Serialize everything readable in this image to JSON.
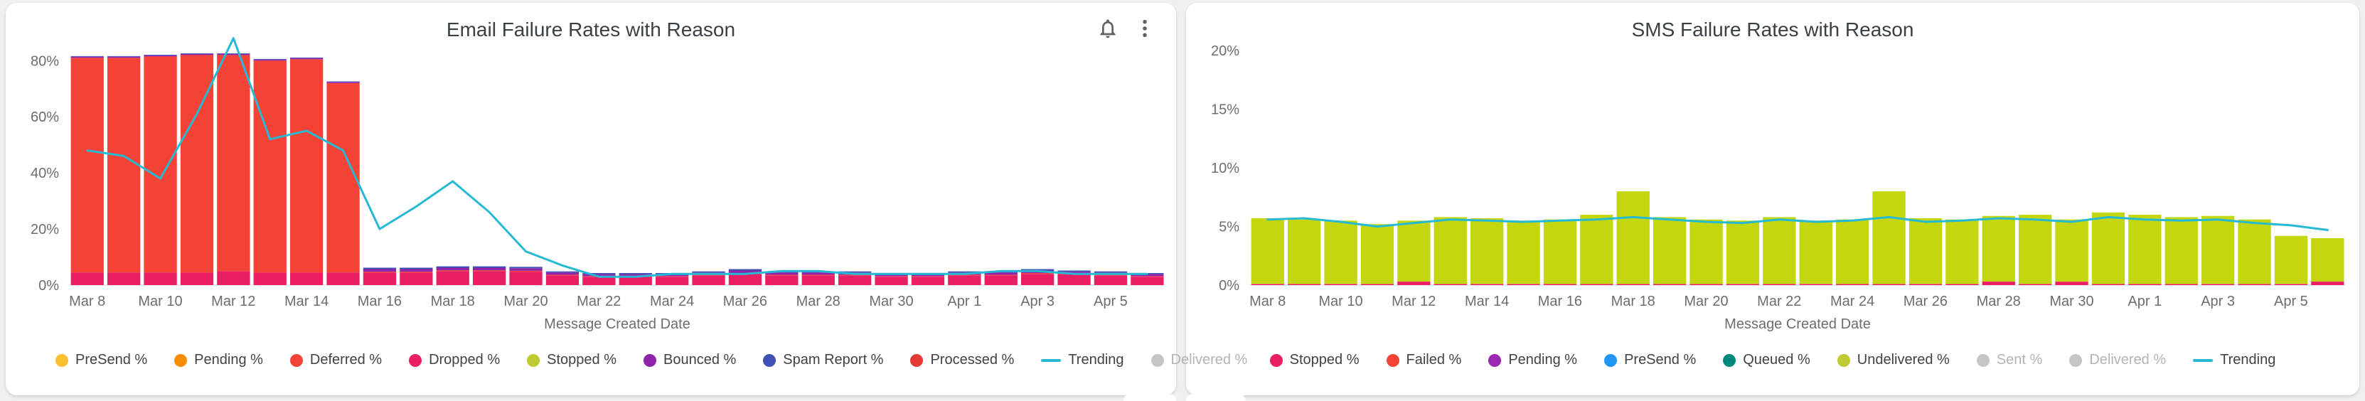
{
  "page": {
    "background": "#f0f0f0",
    "card_background": "#ffffff"
  },
  "colors": {
    "trending": "#26b9d3",
    "axis_text": "#6d6d6d",
    "title_text": "#3b4045",
    "disabled": "#c5c5c5"
  },
  "cards": [
    {
      "title": "Email Failure Rates with Reason",
      "icons": [
        "notifications-bell",
        "kebab-menu"
      ],
      "legend": [
        {
          "label": "PreSend %",
          "color": "#fbc02d"
        },
        {
          "label": "Pending %",
          "color": "#fb8c00"
        },
        {
          "label": "Deferred %",
          "color": "#f44336"
        },
        {
          "label": "Dropped %",
          "color": "#e91e63"
        },
        {
          "label": "Stopped %",
          "color": "#c0ca33"
        },
        {
          "label": "Bounced %",
          "color": "#8e24aa"
        },
        {
          "label": "Spam Report %",
          "color": "#3f51b5"
        },
        {
          "label": "Processed %",
          "color": "#e53935"
        },
        {
          "label": "Trending",
          "color": "#26b9d3",
          "type": "line"
        },
        {
          "label": "Delivered %",
          "color": "#c5c5c5",
          "disabled": true,
          "align": "right"
        }
      ]
    },
    {
      "title": "SMS Failure Rates with Reason",
      "icons": [],
      "legend": [
        {
          "label": "Stopped %",
          "color": "#e91e63"
        },
        {
          "label": "Failed %",
          "color": "#f44336"
        },
        {
          "label": "Pending %",
          "color": "#9c27b0"
        },
        {
          "label": "PreSend %",
          "color": "#2196f3"
        },
        {
          "label": "Queued %",
          "color": "#00897b"
        },
        {
          "label": "Undelivered %",
          "color": "#c0ca33"
        },
        {
          "label": "Sent %",
          "color": "#c5c5c5",
          "disabled": true
        },
        {
          "label": "Delivered %",
          "color": "#c5c5c5",
          "disabled": true
        },
        {
          "label": "Trending",
          "color": "#26b9d3",
          "type": "line"
        }
      ]
    }
  ],
  "chart_data": [
    {
      "type": "bar",
      "stacked": true,
      "title": "Email Failure Rates with Reason",
      "xlabel": "Message Created Date",
      "ylabel": "",
      "ylim": [
        0,
        94
      ],
      "yticks": [
        0,
        20,
        40,
        60,
        80
      ],
      "ytick_suffix": "%",
      "xtick_every": 2,
      "legend_position": "bottom",
      "grid": false,
      "categories": [
        "Mar 8",
        "Mar 9",
        "Mar 10",
        "Mar 11",
        "Mar 12",
        "Mar 13",
        "Mar 14",
        "Mar 15",
        "Mar 16",
        "Mar 17",
        "Mar 18",
        "Mar 19",
        "Mar 20",
        "Mar 21",
        "Mar 22",
        "Mar 23",
        "Mar 24",
        "Mar 25",
        "Mar 26",
        "Mar 27",
        "Mar 28",
        "Mar 29",
        "Mar 30",
        "Mar 31",
        "Apr 1",
        "Apr 2",
        "Apr 3",
        "Apr 4",
        "Apr 5",
        "Apr 6"
      ],
      "series": [
        {
          "name": "Dropped %",
          "color": "#e91e63",
          "values": [
            4.5,
            4.5,
            4.5,
            4.5,
            5,
            4.5,
            4.5,
            4.5,
            4.5,
            4.5,
            5,
            5,
            4.8,
            3.5,
            3,
            3,
            3,
            3.5,
            4,
            3.5,
            3.5,
            3.5,
            3,
            3,
            3.5,
            3.5,
            4,
            3.8,
            3.5,
            3
          ]
        },
        {
          "name": "Deferred %",
          "color": "#f44336",
          "values": [
            76.5,
            76.5,
            77,
            77.5,
            77,
            75.5,
            76,
            67.5,
            0.3,
            0.3,
            0.3,
            0.3,
            0.3,
            0.2,
            0.2,
            0.2,
            0.2,
            0.2,
            0.3,
            0.2,
            0.2,
            0.2,
            0.2,
            0.2,
            0.2,
            0.2,
            0.3,
            0.2,
            0.2,
            0.2
          ]
        },
        {
          "name": "Bounced %",
          "color": "#8e24aa",
          "values": [
            0.4,
            0.4,
            0.4,
            0.4,
            0.4,
            0.4,
            0.4,
            0.4,
            0.9,
            0.9,
            0.9,
            0.9,
            0.9,
            0.8,
            0.7,
            0.7,
            0.7,
            0.8,
            0.9,
            0.8,
            0.8,
            0.8,
            0.7,
            0.7,
            0.8,
            0.8,
            0.9,
            0.8,
            0.8,
            0.7
          ]
        },
        {
          "name": "Spam Report %",
          "color": "#3f51b5",
          "values": [
            0.2,
            0.2,
            0.2,
            0.2,
            0.2,
            0.2,
            0.2,
            0.2,
            0.5,
            0.5,
            0.5,
            0.5,
            0.5,
            0.4,
            0.4,
            0.4,
            0.4,
            0.4,
            0.5,
            0.4,
            0.4,
            0.4,
            0.4,
            0.4,
            0.4,
            0.4,
            0.5,
            0.4,
            0.4,
            0.4
          ]
        }
      ],
      "line": {
        "name": "Trending",
        "color": "#26b9d3",
        "values": [
          48,
          46,
          38,
          61,
          88,
          52,
          55,
          48,
          20,
          28,
          37,
          26,
          12,
          7,
          3,
          3,
          4,
          4,
          4,
          5,
          5,
          4,
          4,
          4,
          4,
          5,
          5,
          4,
          4,
          4
        ]
      }
    },
    {
      "type": "bar",
      "stacked": true,
      "title": "SMS Failure Rates with Reason",
      "xlabel": "Message Created Date",
      "ylabel": "",
      "ylim": [
        0,
        22.5
      ],
      "yticks": [
        0,
        5,
        10,
        15,
        20
      ],
      "ytick_suffix": "%",
      "xtick_every": 2,
      "legend_position": "bottom",
      "grid": false,
      "categories": [
        "Mar 8",
        "Mar 9",
        "Mar 10",
        "Mar 11",
        "Mar 12",
        "Mar 13",
        "Mar 14",
        "Mar 15",
        "Mar 16",
        "Mar 17",
        "Mar 18",
        "Mar 19",
        "Mar 20",
        "Mar 21",
        "Mar 22",
        "Mar 23",
        "Mar 24",
        "Mar 25",
        "Mar 26",
        "Mar 27",
        "Mar 28",
        "Mar 29",
        "Mar 30",
        "Mar 31",
        "Apr 1",
        "Apr 2",
        "Apr 3",
        "Apr 4",
        "Apr 5",
        "Apr 6"
      ],
      "series": [
        {
          "name": "Stopped %",
          "color": "#e91e63",
          "values": [
            0.1,
            0.1,
            0.1,
            0.1,
            0.3,
            0.1,
            0.1,
            0.1,
            0.1,
            0.1,
            0.1,
            0.1,
            0.1,
            0.1,
            0.1,
            0.1,
            0.1,
            0.1,
            0.1,
            0.1,
            0.3,
            0.1,
            0.3,
            0.1,
            0.1,
            0.1,
            0.1,
            0.1,
            0.1,
            0.3
          ]
        },
        {
          "name": "Undelivered %",
          "color": "#c3d60e",
          "values": [
            5.6,
            5.5,
            5.4,
            5.1,
            5.2,
            5.7,
            5.6,
            5.4,
            5.5,
            5.9,
            7.9,
            5.7,
            5.5,
            5.4,
            5.7,
            5.4,
            5.5,
            7.9,
            5.6,
            5.5,
            5.6,
            5.9,
            5.3,
            6.1,
            5.9,
            5.7,
            5.8,
            5.5,
            4.1,
            3.7
          ]
        }
      ],
      "line": {
        "name": "Trending",
        "color": "#26b9d3",
        "values": [
          5.6,
          5.7,
          5.4,
          5.0,
          5.3,
          5.6,
          5.5,
          5.4,
          5.5,
          5.6,
          5.8,
          5.6,
          5.4,
          5.3,
          5.6,
          5.4,
          5.5,
          5.8,
          5.4,
          5.5,
          5.7,
          5.6,
          5.4,
          5.8,
          5.6,
          5.5,
          5.6,
          5.3,
          5.1,
          4.7
        ]
      }
    }
  ]
}
